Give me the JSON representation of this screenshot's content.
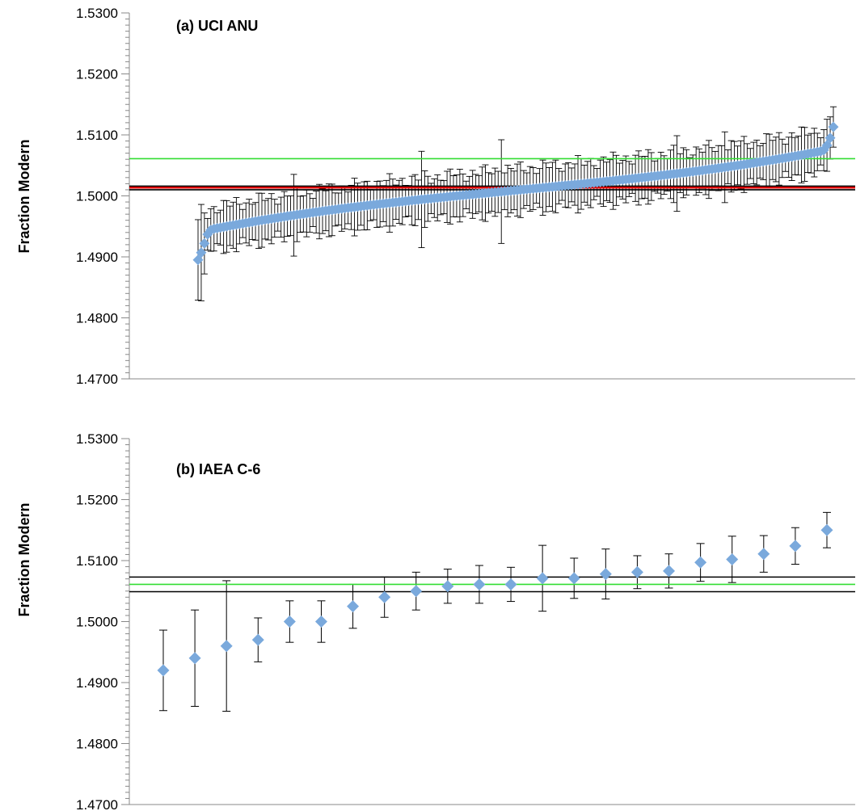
{
  "colors": {
    "marker": "#7aa9dc",
    "error_bar": "#000000",
    "reference_green": "#33dd33",
    "reference_red": "#dd0000",
    "reference_black": "#000000",
    "axis": "#888888"
  },
  "chart_data": [
    {
      "type": "scatter",
      "title": "(a) UCI ANU",
      "ylabel": "Fraction Modern",
      "xlabel": "",
      "ylim": [
        1.47,
        1.53
      ],
      "yticks": [
        "1.4700",
        "1.4800",
        "1.4900",
        "1.5000",
        "1.5100",
        "1.5200",
        "1.5300"
      ],
      "marker": "diamond",
      "grid": false,
      "legend": "none",
      "n_points": 200,
      "series": [
        {
          "values_summary": "sorted ascending measurements from 1.4895 to 1.5113",
          "lowest_values": [
            1.4895,
            1.4907,
            1.4922,
            1.4937,
            1.4944
          ],
          "highest_values": [
            1.5075,
            1.5083,
            1.5095,
            1.5113
          ],
          "typical_error": 0.0035,
          "largest_errors": [
            0.0067,
            0.0079,
            0.0085
          ]
        }
      ],
      "reference_lines": [
        {
          "y": 1.5061,
          "color": "green"
        },
        {
          "y": 1.5016,
          "color": "black"
        },
        {
          "y": 1.5014,
          "color": "red"
        },
        {
          "y": 1.5013,
          "color": "red"
        },
        {
          "y": 1.501,
          "color": "black"
        }
      ]
    },
    {
      "type": "scatter",
      "title": "(b) IAEA C-6",
      "ylabel": "Fraction Modern",
      "xlabel": "",
      "ylim": [
        1.47,
        1.53
      ],
      "yticks": [
        "1.4700",
        "1.4800",
        "1.4900",
        "1.5000",
        "1.5100",
        "1.5200",
        "1.5300"
      ],
      "marker": "diamond",
      "grid": false,
      "legend": "none",
      "series": [
        {
          "values": [
            1.492,
            1.494,
            1.496,
            1.497,
            1.5,
            1.5,
            1.5025,
            1.504,
            1.505,
            1.5058,
            1.5061,
            1.5061,
            1.5071,
            1.5071,
            1.5078,
            1.5081,
            1.5083,
            1.5097,
            1.5102,
            1.5111,
            1.5124,
            1.515
          ],
          "errors": [
            0.0066,
            0.0079,
            0.0107,
            0.0036,
            0.0034,
            0.0034,
            0.0036,
            0.0033,
            0.0031,
            0.0028,
            0.0031,
            0.0028,
            0.0054,
            0.0033,
            0.0041,
            0.0027,
            0.0028,
            0.0031,
            0.0038,
            0.003,
            0.003,
            0.0029
          ]
        }
      ],
      "reference_lines": [
        {
          "y": 1.5073,
          "color": "black"
        },
        {
          "y": 1.5061,
          "color": "green"
        },
        {
          "y": 1.5049,
          "color": "black"
        }
      ]
    }
  ]
}
